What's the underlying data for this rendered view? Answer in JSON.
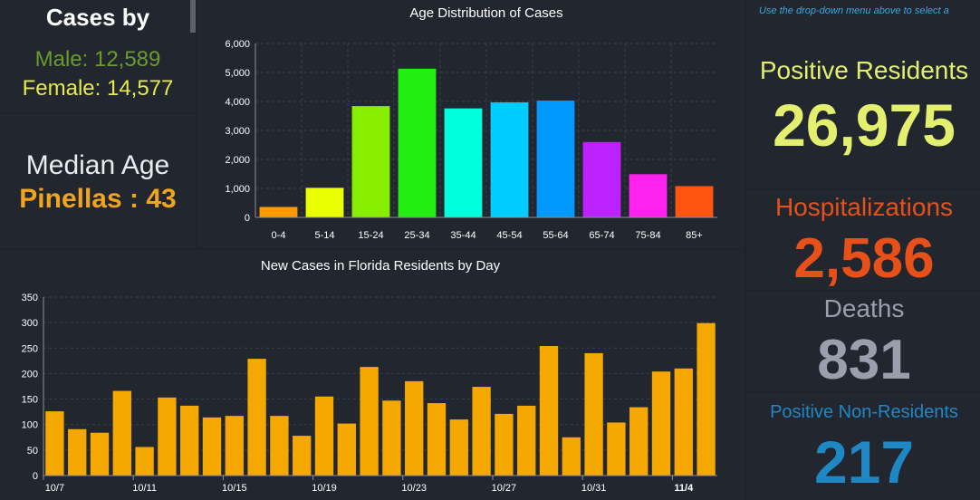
{
  "left_panel": {
    "title": "Cases by",
    "male": "Male: 12,589",
    "female": "Female: 14,577",
    "median_label": "Median Age",
    "median_value": "Pinellas : 43"
  },
  "right_panel": {
    "hint": "Use the drop-down menu above to select a",
    "positive_residents_label": "Positive Residents",
    "positive_residents_value": "26,975",
    "hospitalizations_label": "Hospitalizations",
    "hospitalizations_value": "2,586",
    "deaths_label": "Deaths",
    "deaths_value": "831",
    "non_residents_label": "Positive Non-Residents",
    "non_residents_value": "217"
  },
  "colors": {
    "positive": "#e3ef6e",
    "hospitalizations": "#e8501a",
    "deaths": "#9aa0ab",
    "non_residents": "#1f88c4",
    "daily_bar": "#f5a800"
  },
  "chart_data": [
    {
      "type": "bar",
      "title": "Age Distribution of Cases",
      "categories": [
        "0-4",
        "5-14",
        "15-24",
        "25-34",
        "35-44",
        "45-54",
        "55-64",
        "65-74",
        "75-84",
        "85+"
      ],
      "values": [
        360,
        1020,
        3840,
        5130,
        3760,
        3970,
        4030,
        2600,
        1490,
        1080
      ],
      "bar_colors": [
        "#ff9900",
        "#eaff00",
        "#88ee00",
        "#22ee11",
        "#00ffdd",
        "#00ccff",
        "#0099ff",
        "#bb22ff",
        "#ff22ee",
        "#ff5511"
      ],
      "y_ticks": [
        "0",
        "1,000",
        "2,000",
        "3,000",
        "4,000",
        "5,000",
        "6,000"
      ],
      "ylim": [
        0,
        6000
      ],
      "xlabel": "",
      "ylabel": "",
      "grid": true
    },
    {
      "type": "bar",
      "title": "New Cases in Florida Residents by Day",
      "categories": [
        "10/7",
        "10/8",
        "10/9",
        "10/10",
        "10/11",
        "10/12",
        "10/13",
        "10/14",
        "10/15",
        "10/16",
        "10/17",
        "10/18",
        "10/19",
        "10/20",
        "10/21",
        "10/22",
        "10/23",
        "10/24",
        "10/25",
        "10/26",
        "10/27",
        "10/28",
        "10/29",
        "10/30",
        "10/31",
        "11/1",
        "11/2",
        "11/3",
        "11/4",
        "11/5"
      ],
      "values": [
        126,
        91,
        84,
        166,
        56,
        153,
        137,
        114,
        117,
        229,
        117,
        78,
        155,
        102,
        213,
        147,
        185,
        142,
        110,
        174,
        121,
        137,
        254,
        75,
        240,
        104,
        134,
        204,
        210,
        299
      ],
      "x_tick_labels": [
        "10/7",
        "10/11",
        "10/15",
        "10/19",
        "10/23",
        "10/27",
        "10/31",
        "11/4"
      ],
      "x_tick_every": 4,
      "highlight_label": "11/4",
      "y_ticks": [
        "0",
        "50",
        "100",
        "150",
        "200",
        "250",
        "300",
        "350"
      ],
      "ylim": [
        0,
        350
      ],
      "xlabel": "",
      "ylabel": "",
      "grid": true
    }
  ]
}
